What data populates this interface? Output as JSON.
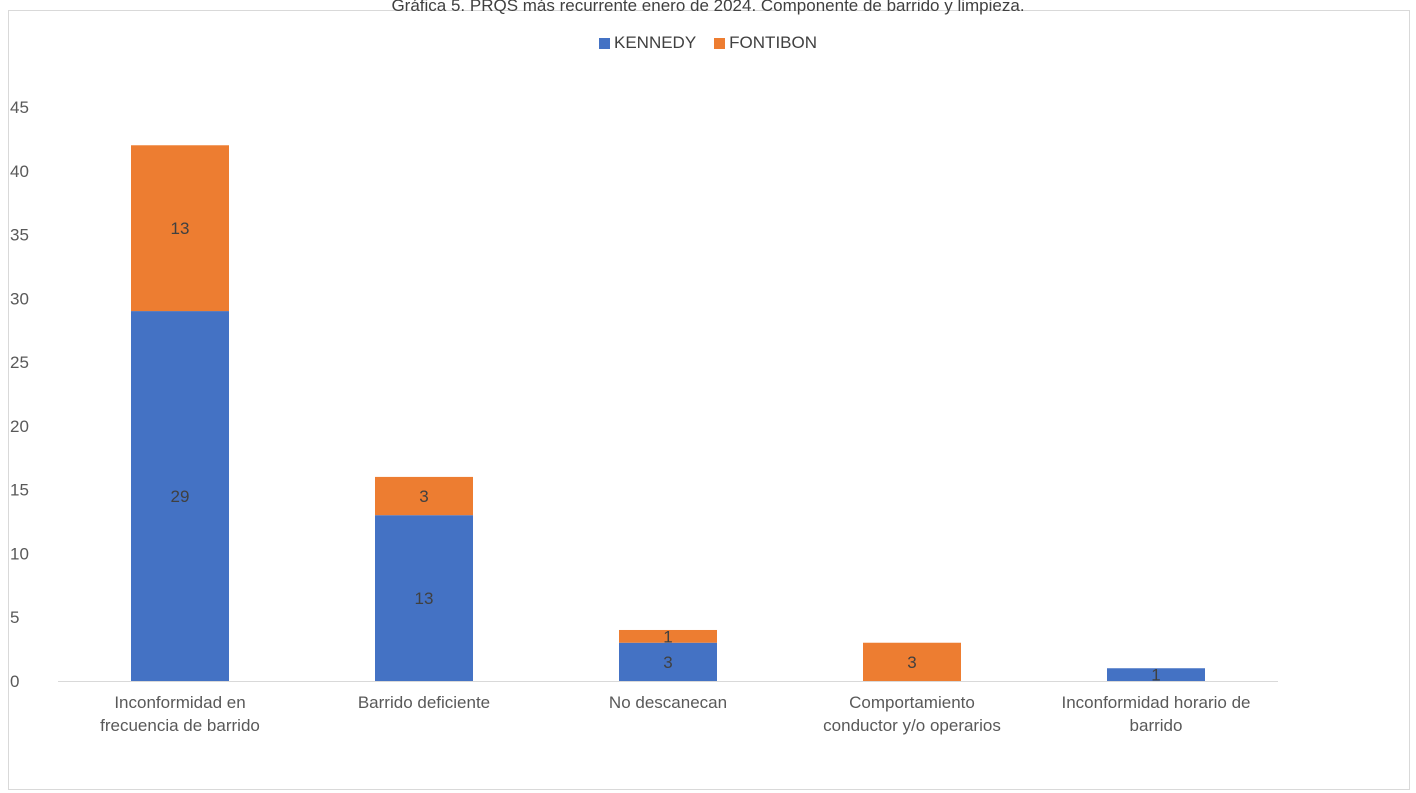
{
  "chart_data": {
    "type": "bar",
    "stacked": true,
    "title": "Gráfica 5. PRQS más recurrente enero de 2024. Componente de barrido y limpieza.",
    "categories": [
      [
        "Inconformidad en",
        "frecuencia de barrido"
      ],
      [
        "Barrido deficiente"
      ],
      [
        "No descanecan"
      ],
      [
        "Comportamiento",
        "conductor y/o operarios"
      ],
      [
        "Inconformidad horario de",
        "barrido"
      ]
    ],
    "series": [
      {
        "name": "KENNEDY",
        "color": "#4472c4",
        "values": [
          29,
          13,
          3,
          0,
          1
        ]
      },
      {
        "name": "FONTIBON",
        "color": "#ed7d31",
        "values": [
          13,
          3,
          1,
          3,
          0
        ]
      }
    ],
    "ylim": [
      0,
      45
    ],
    "yticks": [
      0,
      5,
      10,
      15,
      20,
      25,
      30,
      35,
      40,
      45
    ],
    "grid": false,
    "legend_position": "top"
  }
}
